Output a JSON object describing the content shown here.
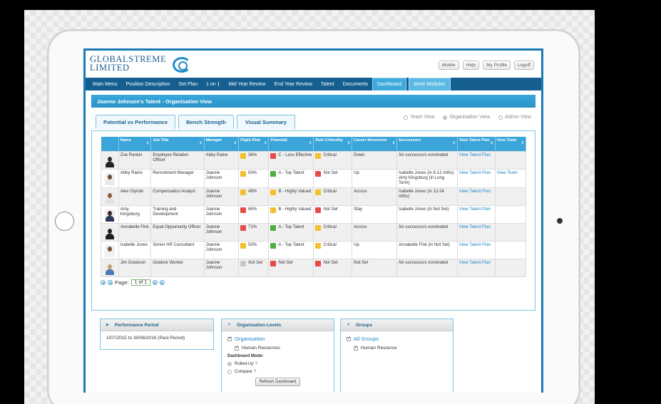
{
  "header": {
    "logo_line1": "GLOBALSTREME",
    "logo_line2": "LIMITED",
    "top_links": [
      "Mobile",
      "Help",
      "My Profile",
      "Logoff"
    ]
  },
  "nav": {
    "items": [
      "Main Menu",
      "Position Description",
      "Set Plan",
      "1 on 1",
      "Mid Year Review",
      "End Year Review",
      "Talent",
      "Documents"
    ],
    "active": "Dashboard",
    "modules": "More Modules"
  },
  "title": "Joanne Johnson's Talent - Organisation View",
  "tabs": [
    "Potential vs Performance",
    "Bench Strength",
    "Visual Summary"
  ],
  "views": [
    "Team View",
    "Organisation View",
    "Admin View"
  ],
  "table": {
    "headers": [
      "Name",
      "Job Title",
      "Manager",
      "Flight Risk",
      "Potential",
      "Role Criticality",
      "Career Movement",
      "Successors",
      "View Talent Plan",
      "View Team"
    ],
    "rows": [
      {
        "name": "Zoe Rankin",
        "job": "Employee Relation Officer",
        "manager": "Abby Raine",
        "flight": "36%",
        "flight_color": "yellow",
        "potential": "C - Less Effective",
        "potential_color": "red",
        "crit": "Critical",
        "crit_color": "yellow",
        "career": "Down",
        "successors": "No successors nominated",
        "succ_ital": true,
        "plan": "View Talent Plan",
        "team": ""
      },
      {
        "name": "Abby Raine",
        "job": "Recruitment Manager",
        "manager": "Joanne Johnson",
        "flight": "63%",
        "flight_color": "yellow",
        "potential": "A - Top Talent",
        "potential_color": "green",
        "crit": "Not Set",
        "crit_color": "red",
        "career": "Up",
        "successors": "Isabelle Jones (in 6-12 mths) Amy Kingsburg (in Long Term)",
        "succ_ital": false,
        "plan": "View Talent Plan",
        "team": "View Team"
      },
      {
        "name": "Alex Glynde",
        "job": "Compensation Analyst",
        "manager": "Joanne Johnson",
        "flight": "49%",
        "flight_color": "yellow",
        "potential": "B - Highly Valued",
        "potential_color": "yellow",
        "crit": "Critical",
        "crit_color": "yellow",
        "career": "Across",
        "successors": "Isabelle Jones (in 12-24 mths)",
        "succ_ital": false,
        "plan": "View Talent Plan",
        "team": ""
      },
      {
        "name": "Amy Kingsburg",
        "job": "Training and Development",
        "manager": "Joanne Johnson",
        "flight": "66%",
        "flight_color": "red",
        "potential": "B - Highly Valued",
        "potential_color": "yellow",
        "crit": "Not Set",
        "crit_color": "red",
        "career": "Stay",
        "successors": "Isabelle Jones (in Not Set)",
        "succ_ital": false,
        "plan": "View Talent Plan",
        "team": ""
      },
      {
        "name": "Annabelle Fink",
        "job": "Equal Opportunity Officer",
        "manager": "Joanne Johnson",
        "flight": "71%",
        "flight_color": "red",
        "potential": "A - Top Talent",
        "potential_color": "green",
        "crit": "Critical",
        "crit_color": "yellow",
        "career": "Across",
        "successors": "No successors nominated",
        "succ_ital": true,
        "plan": "View Talent Plan",
        "team": ""
      },
      {
        "name": "Isabelle Jones",
        "job": "Senior HR Consultant",
        "manager": "Joanne Johnson",
        "flight": "50%",
        "flight_color": "yellow",
        "potential": "A - Top Talent",
        "potential_color": "green",
        "crit": "Critical",
        "crit_color": "yellow",
        "career": "Up",
        "successors": "Annabelle Fink (in Not Set)",
        "succ_ital": false,
        "plan": "View Talent Plan",
        "team": ""
      },
      {
        "name": "Jim Goodson",
        "job": "Outdoor Worker",
        "manager": "Joanne Johnson",
        "flight": "Not Set",
        "flight_color": "grey",
        "potential": "Not Set",
        "potential_color": "red",
        "crit": "Not Set",
        "crit_color": "red",
        "career": "Not Set",
        "successors": "No successors nominated",
        "succ_ital": true,
        "plan": "View Talent Plan",
        "team": ""
      }
    ]
  },
  "pager": {
    "label": "Page:",
    "value": "1 of 1"
  },
  "performance": {
    "title": "Performance Period",
    "value": "1/07/2015 to 30/06/2016 (Past Period)"
  },
  "org_levels": {
    "title": "Organisation Levels",
    "root": "Organisation",
    "child": "Human Resources",
    "mode_label": "Dashboard Mode:",
    "opt1": "Rolled-Up",
    "opt2": "Compare",
    "q": "?",
    "refresh": "Refresh Dashboard"
  },
  "groups": {
    "title": "Groups",
    "root": "All Groups",
    "child": "Human Resource"
  }
}
